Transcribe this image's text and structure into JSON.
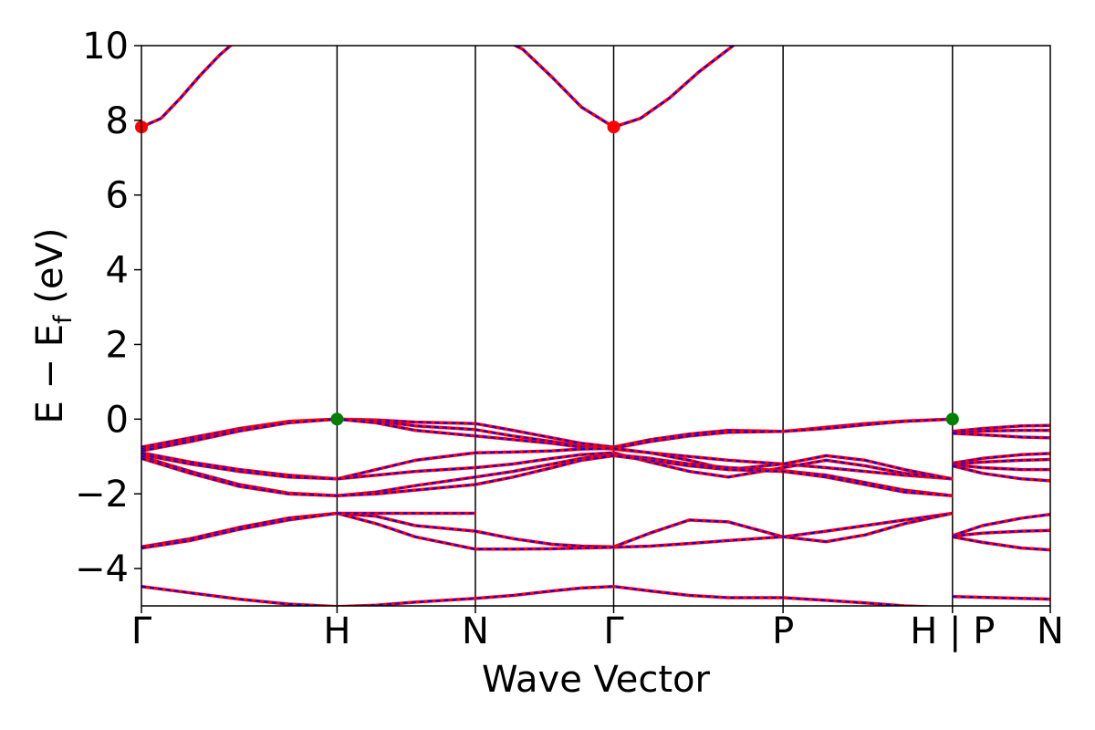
{
  "chart_data": {
    "type": "line",
    "title": "",
    "xlabel": "Wave Vector",
    "ylabel_main": "E − E",
    "ylabel_sub": "f",
    "ylabel_unit": " (eV)",
    "ylim": [
      -5,
      10
    ],
    "yticks": [
      -4,
      -2,
      0,
      2,
      4,
      6,
      8,
      10
    ],
    "ytick_labels": [
      "−4",
      "−2",
      "0",
      "2",
      "4",
      "6",
      "8",
      "10"
    ],
    "kpoints": [
      {
        "label": "Γ",
        "x": 0.0
      },
      {
        "label": "H",
        "x": 1.0
      },
      {
        "label": "N",
        "x": 1.707
      },
      {
        "label": "Γ",
        "x": 2.414
      },
      {
        "label": "P",
        "x": 3.28
      },
      {
        "label": "H | P",
        "x": 4.146
      },
      {
        "label": "N",
        "x": 4.646
      }
    ],
    "path_break_x": 4.146,
    "colors": {
      "spin_up": "#0000ff",
      "spin_down": "#ff0000",
      "cbm_marker": "#ff0000",
      "vbm_marker": "#008000"
    },
    "bands": [
      {
        "x": [
          0,
          0.1,
          0.2,
          0.3,
          0.4,
          0.5,
          0.6
        ],
        "y": [
          7.82,
          8.05,
          8.6,
          9.2,
          9.75,
          10.2,
          10.6
        ]
      },
      {
        "x": [
          1.8,
          1.95,
          2.1,
          2.25,
          2.414,
          2.55,
          2.7,
          2.85,
          3.0,
          3.1
        ],
        "y": [
          10.3,
          9.9,
          9.15,
          8.35,
          7.82,
          8.05,
          8.6,
          9.3,
          9.9,
          10.3
        ]
      },
      {
        "x": [
          0,
          0.25,
          0.5,
          0.75,
          1.0,
          1.2,
          1.4,
          1.707,
          1.9,
          2.1,
          2.25,
          2.414,
          2.6,
          2.8,
          3.0,
          3.28,
          3.5,
          3.7,
          3.9,
          4.146
        ],
        "y": [
          -0.75,
          -0.5,
          -0.25,
          -0.06,
          0,
          -0.02,
          -0.08,
          -0.12,
          -0.3,
          -0.5,
          -0.65,
          -0.75,
          -0.55,
          -0.4,
          -0.3,
          -0.33,
          -0.22,
          -0.12,
          -0.05,
          0
        ]
      },
      {
        "x": [
          0,
          0.25,
          0.5,
          0.75,
          1.0,
          1.2,
          1.4,
          1.707,
          1.9,
          2.1,
          2.25,
          2.414,
          2.6,
          2.8,
          3.0,
          3.28,
          3.5,
          3.7,
          3.9,
          4.146
        ],
        "y": [
          -0.8,
          -0.55,
          -0.28,
          -0.08,
          0,
          -0.05,
          -0.18,
          -0.28,
          -0.45,
          -0.6,
          -0.72,
          -0.78,
          -0.6,
          -0.45,
          -0.35,
          -0.33,
          -0.25,
          -0.15,
          -0.06,
          0
        ]
      },
      {
        "x": [
          0,
          0.25,
          0.5,
          0.75,
          1.0,
          1.2,
          1.4,
          1.707,
          1.9,
          2.1,
          2.25,
          2.414,
          2.6,
          2.8,
          3.0,
          3.28,
          3.5,
          3.7,
          3.9,
          4.146
        ],
        "y": [
          -0.85,
          -0.6,
          -0.32,
          -0.1,
          0,
          -0.1,
          -0.3,
          -0.45,
          -0.55,
          -0.65,
          -0.75,
          -0.8,
          -0.9,
          -1.0,
          -1.1,
          -1.2,
          -1.3,
          -1.4,
          -1.5,
          -1.6
        ]
      },
      {
        "x": [
          0,
          0.25,
          0.5,
          0.75,
          1.0,
          1.2,
          1.4,
          1.707,
          1.9,
          2.1,
          2.25,
          2.414,
          2.6,
          2.8,
          3.0,
          3.28,
          3.5,
          3.7,
          3.9,
          4.146
        ],
        "y": [
          -0.9,
          -1.15,
          -1.35,
          -1.5,
          -1.6,
          -1.35,
          -1.1,
          -0.9,
          -0.88,
          -0.85,
          -0.8,
          -0.78,
          -0.9,
          -1.1,
          -1.35,
          -1.2,
          -0.98,
          -1.1,
          -1.35,
          -1.6
        ]
      },
      {
        "x": [
          0,
          0.25,
          0.5,
          0.75,
          1.0,
          1.2,
          1.4,
          1.707,
          1.9,
          2.1,
          2.25,
          2.414,
          2.6,
          2.8,
          3.0,
          3.28,
          3.5,
          3.7,
          3.9,
          4.146
        ],
        "y": [
          -0.95,
          -1.2,
          -1.4,
          -1.55,
          -1.6,
          -1.5,
          -1.4,
          -1.3,
          -1.2,
          -1.05,
          -0.95,
          -0.9,
          -1.15,
          -1.4,
          -1.55,
          -1.3,
          -1.1,
          -1.25,
          -1.45,
          -1.6
        ]
      },
      {
        "x": [
          0,
          0.25,
          0.5,
          0.75,
          1.0,
          1.2,
          1.4,
          1.707,
          1.9,
          2.1,
          2.25,
          2.414,
          2.6,
          2.8,
          3.0,
          3.28,
          3.5,
          3.7,
          3.9,
          4.146
        ],
        "y": [
          -1.0,
          -1.4,
          -1.75,
          -1.98,
          -2.05,
          -1.95,
          -1.78,
          -1.55,
          -1.4,
          -1.2,
          -1.05,
          -0.95,
          -1.05,
          -1.2,
          -1.3,
          -1.38,
          -1.5,
          -1.7,
          -1.9,
          -2.05
        ]
      },
      {
        "x": [
          0,
          0.25,
          0.5,
          0.75,
          1.0,
          1.2,
          1.4,
          1.707,
          1.9,
          2.1,
          2.25,
          2.414,
          2.6,
          2.8,
          3.0,
          3.28,
          3.5,
          3.7,
          3.9,
          4.146
        ],
        "y": [
          -1.05,
          -1.45,
          -1.8,
          -2.0,
          -2.05,
          -2.0,
          -1.9,
          -1.75,
          -1.55,
          -1.3,
          -1.1,
          -0.98,
          -1.1,
          -1.25,
          -1.35,
          -1.4,
          -1.55,
          -1.75,
          -1.95,
          -2.05
        ]
      },
      {
        "x": [
          0,
          0.25,
          0.5,
          0.75,
          1.0,
          1.2,
          1.4,
          1.707,
          1.9,
          2.1,
          2.25,
          2.414,
          2.6,
          2.8,
          3.0,
          3.28,
          3.5,
          3.7,
          3.9,
          4.146
        ],
        "y": [
          -3.42,
          -3.2,
          -2.9,
          -2.65,
          -2.52,
          -2.6,
          -2.85,
          -3.0,
          -3.2,
          -3.35,
          -3.4,
          -3.42,
          -3.05,
          -2.7,
          -2.75,
          -3.15,
          -3.0,
          -2.85,
          -2.7,
          -2.52
        ]
      },
      {
        "x": [
          0,
          0.25,
          0.5,
          0.75,
          1.0,
          1.2,
          1.4,
          1.707,
          1.9,
          2.1,
          2.25,
          2.414,
          2.6,
          2.8,
          3.0,
          3.28,
          3.5,
          3.7,
          3.9,
          4.146
        ],
        "y": [
          -3.45,
          -3.25,
          -2.95,
          -2.7,
          -2.52,
          -2.8,
          -3.15,
          -3.48,
          -3.48,
          -3.47,
          -3.45,
          -3.43,
          -3.4,
          -3.33,
          -3.25,
          -3.15,
          -3.28,
          -3.1,
          -2.8,
          -2.52
        ]
      },
      {
        "x": [
          1.0,
          1.2,
          1.4,
          1.707
        ],
        "y": [
          -2.52,
          -2.52,
          -2.52,
          -2.52
        ]
      },
      {
        "x": [
          0,
          0.25,
          0.5,
          0.75,
          1.0,
          1.2,
          1.4,
          1.707,
          1.9,
          2.1,
          2.25,
          2.414,
          2.6,
          2.8,
          3.0,
          3.28,
          3.5,
          3.7,
          3.9,
          4.146
        ],
        "y": [
          -4.48,
          -4.65,
          -4.82,
          -4.95,
          -5.02,
          -4.98,
          -4.9,
          -4.8,
          -4.72,
          -4.6,
          -4.52,
          -4.48,
          -4.6,
          -4.72,
          -4.78,
          -4.78,
          -4.85,
          -4.92,
          -5.0,
          -5.05
        ]
      },
      {
        "x": [
          4.146,
          4.3,
          4.5,
          4.646
        ],
        "y": [
          -0.33,
          -0.25,
          -0.18,
          -0.17
        ]
      },
      {
        "x": [
          4.146,
          4.3,
          4.5,
          4.646
        ],
        "y": [
          -0.35,
          -0.32,
          -0.3,
          -0.3
        ]
      },
      {
        "x": [
          4.146,
          4.3,
          4.5,
          4.646
        ],
        "y": [
          -0.38,
          -0.42,
          -0.48,
          -0.5
        ]
      },
      {
        "x": [
          4.146,
          4.3,
          4.5,
          4.646
        ],
        "y": [
          -1.18,
          -1.05,
          -0.95,
          -0.92
        ]
      },
      {
        "x": [
          4.146,
          4.3,
          4.5,
          4.646
        ],
        "y": [
          -1.2,
          -1.15,
          -1.1,
          -1.08
        ]
      },
      {
        "x": [
          4.146,
          4.3,
          4.5,
          4.646
        ],
        "y": [
          -1.22,
          -1.3,
          -1.35,
          -1.35
        ]
      },
      {
        "x": [
          4.146,
          4.3,
          4.5,
          4.646
        ],
        "y": [
          -1.25,
          -1.45,
          -1.6,
          -1.65
        ]
      },
      {
        "x": [
          4.146,
          4.3,
          4.5,
          4.646
        ],
        "y": [
          -3.12,
          -2.85,
          -2.65,
          -2.55
        ]
      },
      {
        "x": [
          4.146,
          4.3,
          4.5,
          4.646
        ],
        "y": [
          -3.13,
          -3.05,
          -3.0,
          -2.98
        ]
      },
      {
        "x": [
          4.146,
          4.3,
          4.5,
          4.646
        ],
        "y": [
          -3.15,
          -3.3,
          -3.45,
          -3.5
        ]
      },
      {
        "x": [
          4.146,
          4.3,
          4.5,
          4.646
        ],
        "y": [
          -4.75,
          -4.77,
          -4.8,
          -4.82
        ]
      }
    ],
    "markers": [
      {
        "kind": "cbm",
        "x": 0.0,
        "y": 7.82
      },
      {
        "kind": "cbm",
        "x": 2.414,
        "y": 7.82
      },
      {
        "kind": "vbm",
        "x": 1.0,
        "y": 0.0
      },
      {
        "kind": "vbm",
        "x": 4.146,
        "y": 0.0
      }
    ]
  }
}
